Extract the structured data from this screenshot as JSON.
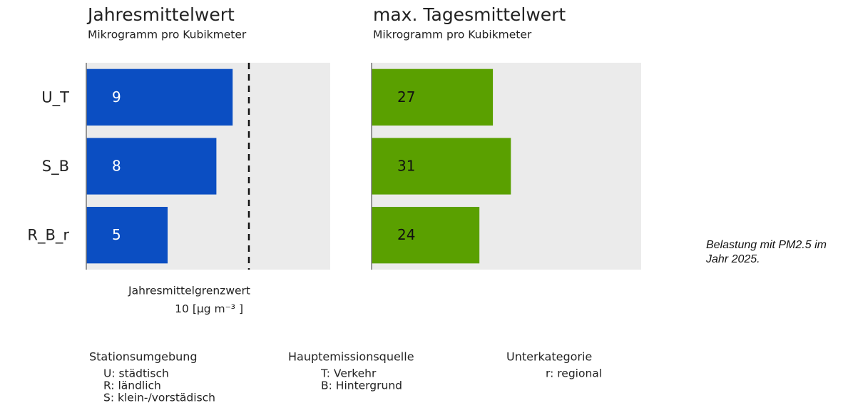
{
  "chart_data": [
    {
      "type": "hbar",
      "title": "Jahresmittelwert",
      "subtitle": "Mikrogramm pro Kubikmeter",
      "categories": [
        "U_T",
        "S_B",
        "R_B_r"
      ],
      "values": [
        9,
        8,
        5
      ],
      "color": "#0b4ec2",
      "label_color": "#ffffff",
      "xlim": [
        0,
        15
      ],
      "threshold": {
        "value": 10,
        "label": "Jahresmittelgrenzwert",
        "unit": "[µg m⁻³ ]"
      }
    },
    {
      "type": "hbar",
      "title": "max. Tagesmittelwert",
      "subtitle": "Mikrogramm pro Kubikmeter",
      "values": [
        27,
        31,
        24
      ],
      "color": "#5aa000",
      "label_color": "#111111",
      "xlim": [
        0,
        60
      ]
    }
  ],
  "abbreviations": [
    {
      "title": "Stationsumgebung",
      "items": [
        "U: städtisch",
        "R: ländlich",
        "S: klein-/vorstädisch"
      ]
    },
    {
      "title": "Hauptemissionsquelle",
      "items": [
        "T: Verkehr",
        "B: Hintergrund"
      ]
    },
    {
      "title": "Unterkategorie",
      "items": [
        "r: regional"
      ]
    }
  ],
  "caption": "Belastung mit PM2.5 im Jahr 2025."
}
